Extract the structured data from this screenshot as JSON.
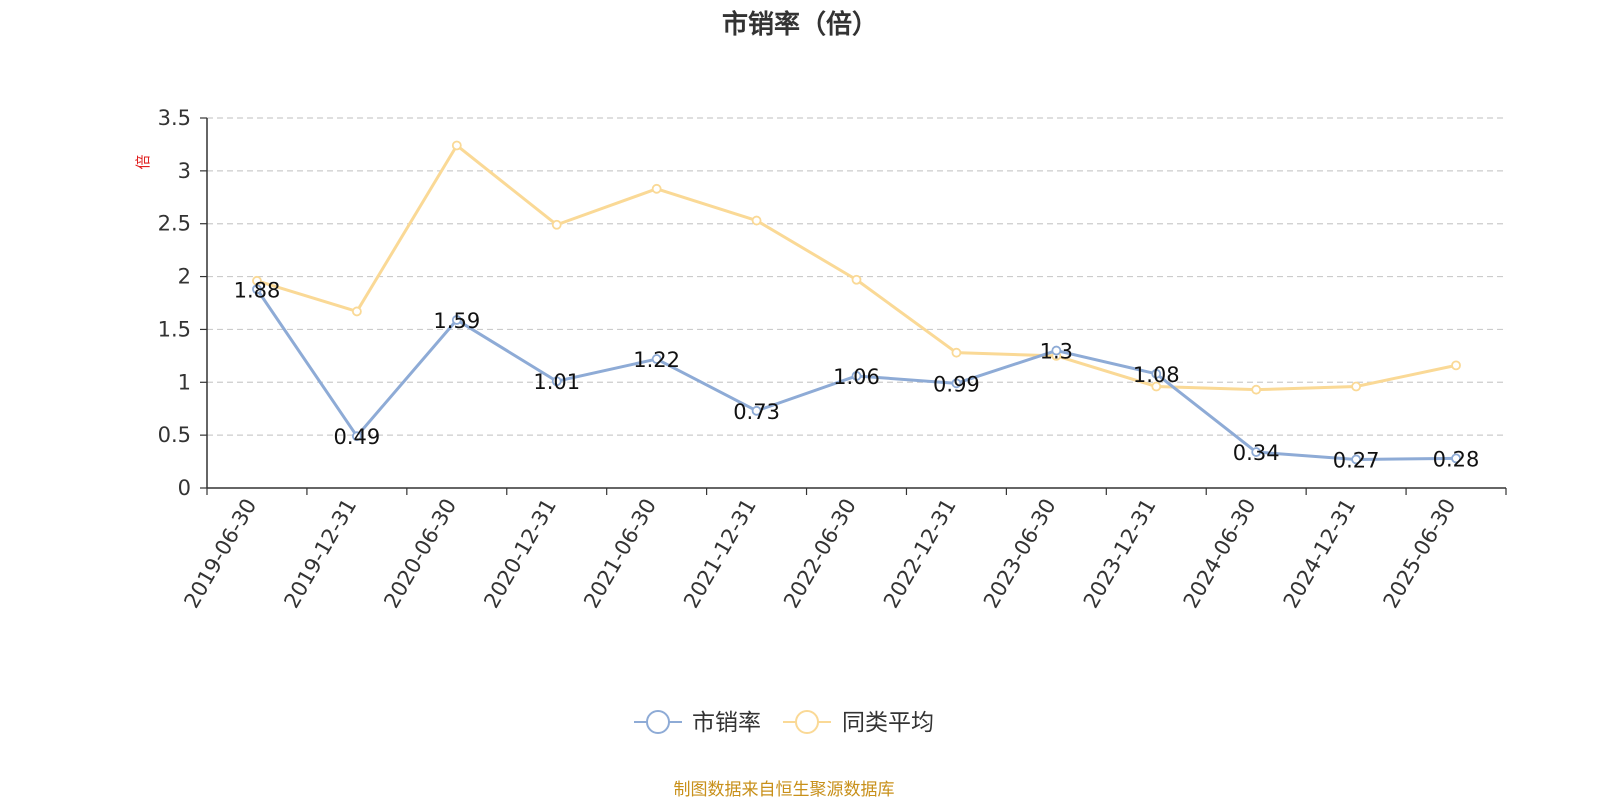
{
  "chart_data": {
    "type": "line",
    "title": "市销率（倍）",
    "y_unit": "倍",
    "categories": [
      "2019-06-30",
      "2019-12-31",
      "2020-06-30",
      "2020-12-31",
      "2021-06-30",
      "2021-12-31",
      "2022-06-30",
      "2022-12-31",
      "2023-06-30",
      "2023-12-31",
      "2024-06-30",
      "2024-12-31",
      "2025-06-30"
    ],
    "series": [
      {
        "name": "市销率",
        "color": "#8eabd6",
        "values": [
          1.88,
          0.49,
          1.59,
          1.01,
          1.22,
          0.73,
          1.06,
          0.99,
          1.3,
          1.08,
          0.34,
          0.27,
          0.28
        ],
        "labels": [
          "1.88",
          "0.49",
          "1.59",
          "1.01",
          "1.22",
          "0.73",
          "1.06",
          "0.99",
          "1.3",
          "1.08",
          "0.34",
          "0.27",
          "0.28"
        ]
      },
      {
        "name": "同类平均",
        "color": "#fad996",
        "values": [
          1.96,
          1.67,
          3.24,
          2.49,
          2.83,
          2.53,
          1.97,
          1.28,
          1.25,
          0.96,
          0.93,
          0.96,
          1.16
        ]
      }
    ],
    "ylim": [
      0,
      3.5
    ],
    "yticks": [
      "0",
      "0.5",
      "1",
      "1.5",
      "2",
      "2.5",
      "3",
      "3.5"
    ],
    "ytick_values": [
      0,
      0.5,
      1,
      1.5,
      2,
      2.5,
      3,
      3.5
    ],
    "grid": true,
    "legend_position": "bottom-center"
  },
  "source": {
    "text": "制图数据来自恒生聚源数据库",
    "color": "#c8901a"
  },
  "colors": {
    "unit": "#e02020",
    "axis": "#333333",
    "grid": "#cccccc"
  }
}
